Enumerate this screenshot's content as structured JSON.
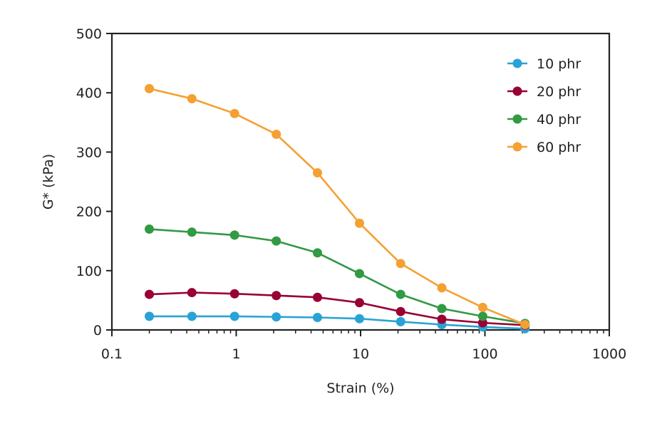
{
  "chart_data": {
    "type": "line",
    "xlabel": "Strain (%)",
    "ylabel": "G* (kPa)",
    "xscale": "log",
    "xlim": [
      0.1,
      1000
    ],
    "ylim": [
      0,
      500
    ],
    "xticks": [
      "0.1",
      "1",
      "10",
      "100",
      "1000"
    ],
    "yticks": [
      "0",
      "100",
      "200",
      "300",
      "400",
      "500"
    ],
    "grid": false,
    "legend_position": "top-right",
    "x": [
      0.2,
      0.44,
      0.97,
      2.1,
      4.5,
      9.8,
      21,
      45,
      96,
      210
    ],
    "series": [
      {
        "name": "10 phr",
        "color": "#29a3d6",
        "values": [
          23,
          23,
          23,
          22,
          21,
          19,
          14,
          9,
          5,
          2
        ]
      },
      {
        "name": "20 phr",
        "color": "#990033",
        "values": [
          60,
          63,
          61,
          58,
          55,
          46,
          31,
          18,
          12,
          8
        ]
      },
      {
        "name": "40 phr",
        "color": "#339944",
        "values": [
          170,
          165,
          160,
          150,
          130,
          95,
          60,
          36,
          23,
          11
        ]
      },
      {
        "name": "60 phr",
        "color": "#f5a033",
        "values": [
          407,
          390,
          365,
          330,
          265,
          180,
          112,
          71,
          38,
          9
        ]
      }
    ]
  }
}
